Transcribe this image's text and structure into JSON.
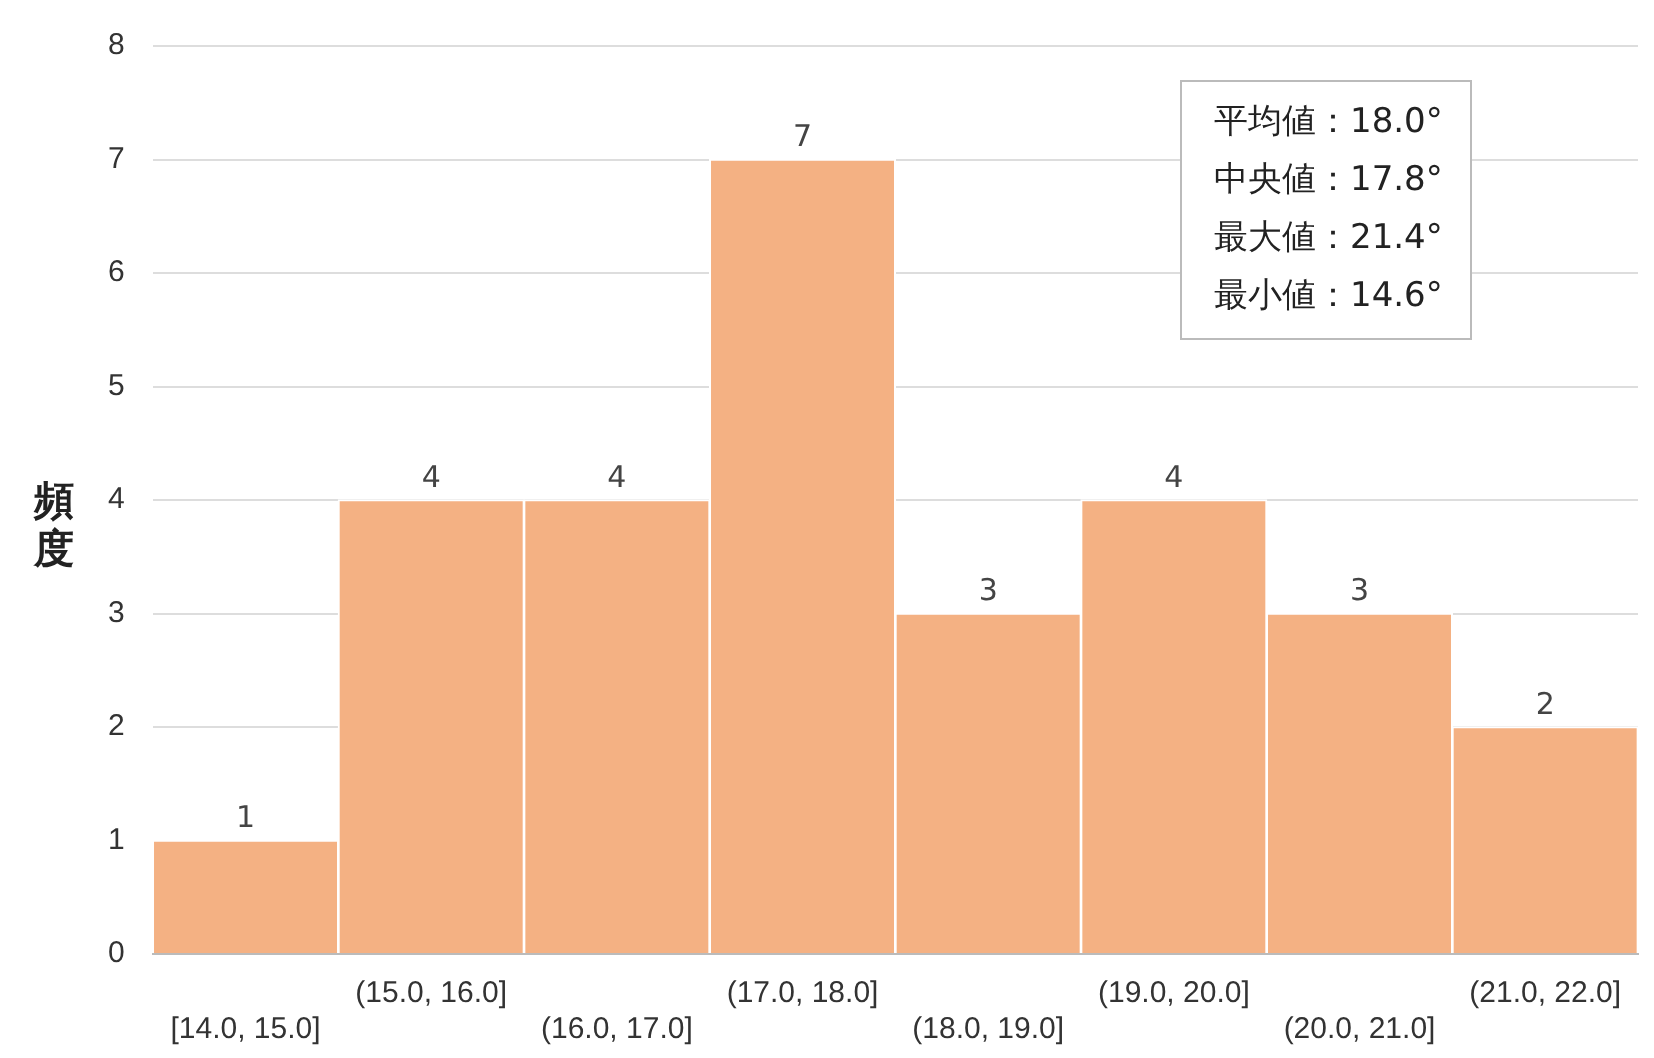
{
  "chart_data": {
    "type": "bar",
    "ylabel": "頻度",
    "categories": [
      "[14.0, 15.0]",
      "(15.0, 16.0]",
      "(16.0, 17.0]",
      "(17.0, 18.0]",
      "(18.0, 19.0]",
      "(19.0, 20.0]",
      "(20.0, 21.0]",
      "(21.0, 22.0]"
    ],
    "values": [
      1,
      4,
      4,
      7,
      3,
      4,
      3,
      2
    ],
    "color": "#f4b183",
    "ylim": [
      0,
      8
    ],
    "yticks": [
      0,
      1,
      2,
      3,
      4,
      5,
      6,
      7,
      8
    ],
    "grid": "y",
    "data_labels": true,
    "legend": false,
    "annotations": [
      "平均値：18.0°",
      "中央値：17.8°",
      "最大値：21.4°",
      "最小値：14.6°"
    ]
  }
}
